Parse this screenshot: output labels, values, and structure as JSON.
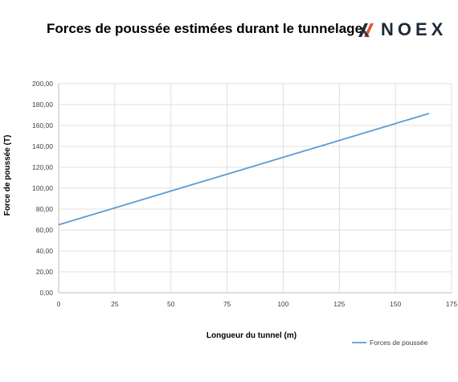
{
  "header": {
    "title": "Forces de poussée estimées durant le tunnelage",
    "logo_text": "NOEX",
    "logo_accent": "#e05a2a"
  },
  "chart_data": {
    "type": "line",
    "title": "Forces de poussée estimées durant le tunnelage",
    "xlabel": "Longueur du tunnel (m)",
    "ylabel": "Force de poussée (T)",
    "xlim": [
      0,
      175
    ],
    "ylim": [
      0,
      200
    ],
    "xticks": [
      "0",
      "25",
      "50",
      "75",
      "100",
      "125",
      "150",
      "175"
    ],
    "yticks": [
      "0,00",
      "20,00",
      "40,00",
      "60,00",
      "80,00",
      "100,00",
      "120,00",
      "140,00",
      "160,00",
      "180,00",
      "200,00"
    ],
    "grid": true,
    "legend_position": "bottom-right",
    "series": [
      {
        "name": "Forces de poussée",
        "color": "#5b9bd5",
        "x": [
          0,
          165
        ],
        "y": [
          65,
          171.5
        ]
      }
    ]
  }
}
